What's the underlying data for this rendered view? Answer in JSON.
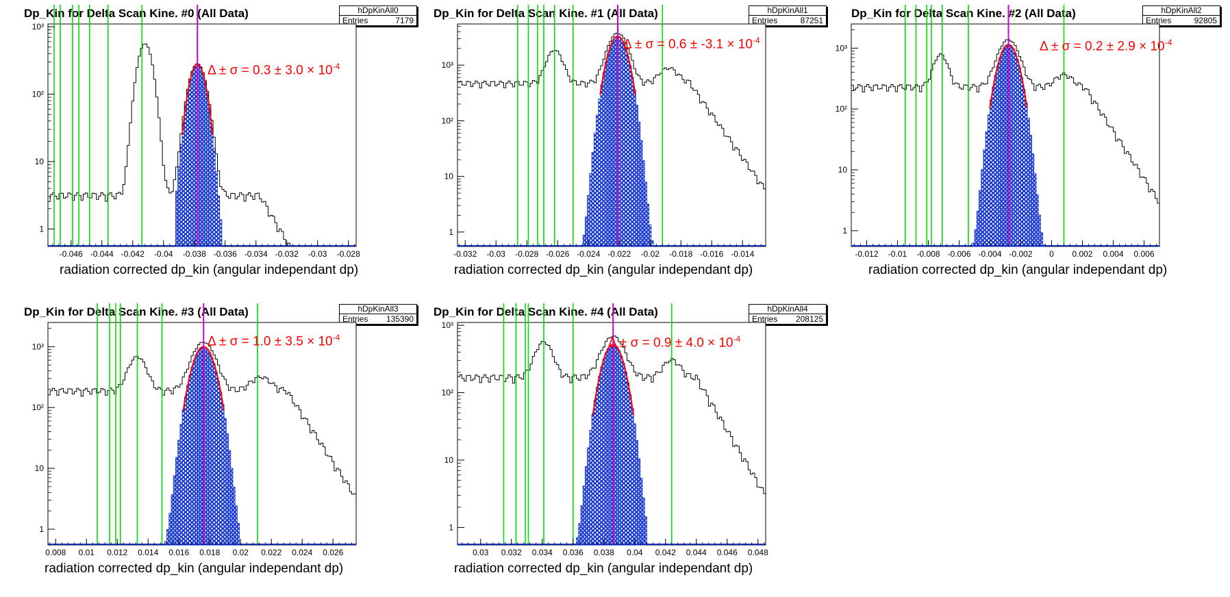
{
  "colors": {
    "hist_line": "#000000",
    "fit": "#ff0000",
    "peak_marker": "#cc00cc",
    "cut_lines": "#00dd00",
    "fill": "#1133cc"
  },
  "common": {
    "xlabel": "radiation corrected dp_kin (angular independant dp)",
    "y_ticks": [
      "1",
      "10",
      "10²",
      "10³"
    ],
    "entries_label": "Entries"
  },
  "chart_data": [
    {
      "type": "bar",
      "title": "Dp_Kin for Delta Scan Kine. #0 (All Data)",
      "stat_name": "hDpKinAll0",
      "entries": "7179",
      "fit_prefix": "Δ ± σ = ",
      "fit_text": "0.3 ± 3.0 × 10",
      "fit_exp": "-4",
      "xlim": [
        -0.0475,
        -0.0275
      ],
      "ylim": [
        0.55,
        1100
      ],
      "ylog": true,
      "x_ticks": [
        "-0.046",
        "-0.044",
        "-0.042",
        "-0.04",
        "-0.038",
        "-0.036",
        "-0.034",
        "-0.032",
        "-0.03",
        "-0.028"
      ],
      "x_tick_values": [
        -0.046,
        -0.044,
        -0.042,
        -0.04,
        -0.038,
        -0.036,
        -0.034,
        -0.032,
        -0.03,
        -0.028
      ],
      "peak": -0.0378,
      "sigma": 0.00045,
      "peak_height": 280,
      "fill_range": [
        -0.0392,
        -0.0363
      ],
      "green_lines": [
        -0.0471,
        -0.0467,
        -0.0459,
        -0.0455,
        -0.0448,
        -0.0436,
        -0.0414
      ],
      "other_peaks": [
        [
          -0.0412,
          560,
          0.0004
        ]
      ],
      "background": 3,
      "grid": false
    },
    {
      "type": "bar",
      "title": "Dp_Kin for Delta Scan Kine. #1 (All Data)",
      "stat_name": "hDpKinAll1",
      "entries": "87251",
      "fit_prefix": "Δ ± σ = ",
      "fit_text": "0.6 ± -3.1 × 10",
      "fit_exp": "-4",
      "xlim": [
        -0.0325,
        -0.0125
      ],
      "ylim": [
        0.55,
        5500
      ],
      "ylog": true,
      "x_ticks": [
        "-0.032",
        "-0.03",
        "-0.028",
        "-0.026",
        "-0.024",
        "-0.022",
        "-0.02",
        "-0.018",
        "-0.016",
        "-0.014"
      ],
      "x_tick_values": [
        -0.032,
        -0.03,
        -0.028,
        -0.026,
        -0.024,
        -0.022,
        -0.02,
        -0.018,
        -0.016,
        -0.014
      ],
      "peak": -0.0221,
      "sigma": 0.00052,
      "peak_height": 3300,
      "fill_range": [
        -0.0245,
        -0.0188
      ],
      "green_lines": [
        -0.0286,
        -0.0279,
        -0.0273,
        -0.0269,
        -0.0262,
        -0.025,
        -0.0192
      ],
      "other_peaks": [
        [
          -0.0262,
          1400,
          0.00045
        ],
        [
          -0.0188,
          420,
          0.00055
        ]
      ],
      "background": 450,
      "grid": false
    },
    {
      "type": "bar",
      "title": "Dp_Kin for Delta Scan Kine. #2 (All Data)",
      "stat_name": "hDpKinAll2",
      "entries": "92805",
      "fit_prefix": "Δ ± σ = ",
      "fit_text": "0.2 ± 2.9 × 10",
      "fit_exp": "-4",
      "xlim": [
        -0.013,
        0.007
      ],
      "ylim": [
        0.55,
        2500
      ],
      "ylog": true,
      "x_ticks": [
        "-0.012",
        "-0.01",
        "-0.008",
        "-0.006",
        "-0.004",
        "-0.002",
        "0",
        "0.002",
        "0.004",
        "0.006"
      ],
      "x_tick_values": [
        -0.012,
        -0.01,
        -0.008,
        -0.006,
        -0.004,
        -0.002,
        0,
        0.002,
        0.004,
        0.006
      ],
      "peak": -0.0028,
      "sigma": 0.00055,
      "peak_height": 1150,
      "fill_range": [
        -0.0053,
        0.0008
      ],
      "green_lines": [
        -0.0095,
        -0.0088,
        -0.0081,
        -0.0078,
        -0.0071,
        -0.0054,
        0.0008
      ],
      "other_peaks": [
        [
          -0.0072,
          560,
          0.0004
        ],
        [
          0.0008,
          140,
          0.0005
        ]
      ],
      "background": 220,
      "grid": false
    },
    {
      "type": "bar",
      "title": "Dp_Kin for Delta Scan Kine. #3 (All Data)",
      "stat_name": "hDpKinAll3",
      "entries": "135390",
      "fit_prefix": "Δ ± σ = ",
      "fit_text": "1.0 ± 3.5 × 10",
      "fit_exp": "-4",
      "xlim": [
        0.0075,
        0.0275
      ],
      "ylim": [
        0.55,
        2500
      ],
      "ylog": true,
      "x_ticks": [
        "0.008",
        "0.01",
        "0.012",
        "0.014",
        "0.016",
        "0.018",
        "0.02",
        "0.022",
        "0.024",
        "0.026"
      ],
      "x_tick_values": [
        0.008,
        0.01,
        0.012,
        0.014,
        0.016,
        0.018,
        0.02,
        0.022,
        0.024,
        0.026
      ],
      "peak": 0.0176,
      "sigma": 0.0006,
      "peak_height": 1000,
      "fill_range": [
        0.0152,
        0.0198
      ],
      "green_lines": [
        0.0107,
        0.0115,
        0.0119,
        0.0122,
        0.0133,
        0.0149,
        0.0211
      ],
      "other_peaks": [
        [
          0.0133,
          500,
          0.0005
        ],
        [
          0.0213,
          130,
          0.0006
        ]
      ],
      "background": 180,
      "grid": false
    },
    {
      "type": "bar",
      "title": "Dp_Kin for Delta Scan Kine. #4 (All Data)",
      "stat_name": "hDpKinAll4",
      "entries": "208125",
      "fit_prefix": "Δ ± σ = ",
      "fit_text": "0.9 ± 4.0 × 10",
      "fit_exp": "-4",
      "xlim": [
        0.0285,
        0.0485
      ],
      "ylim": [
        0.55,
        1100
      ],
      "ylog": true,
      "x_ticks": [
        "0.03",
        "0.032",
        "0.034",
        "0.036",
        "0.038",
        "0.04",
        "0.042",
        "0.044",
        "0.046",
        "0.048"
      ],
      "x_tick_values": [
        0.03,
        0.032,
        0.034,
        0.036,
        0.038,
        0.04,
        0.042,
        0.044,
        0.046,
        0.048
      ],
      "peak": 0.0386,
      "sigma": 0.0006,
      "peak_height": 520,
      "fill_range": [
        0.0363,
        0.0407
      ],
      "green_lines": [
        0.0315,
        0.0323,
        0.0329,
        0.0331,
        0.0341,
        0.036,
        0.0424
      ],
      "other_peaks": [
        [
          0.0341,
          400,
          0.0005
        ],
        [
          0.0424,
          140,
          0.0005
        ]
      ],
      "background": 160,
      "grid": false
    }
  ]
}
